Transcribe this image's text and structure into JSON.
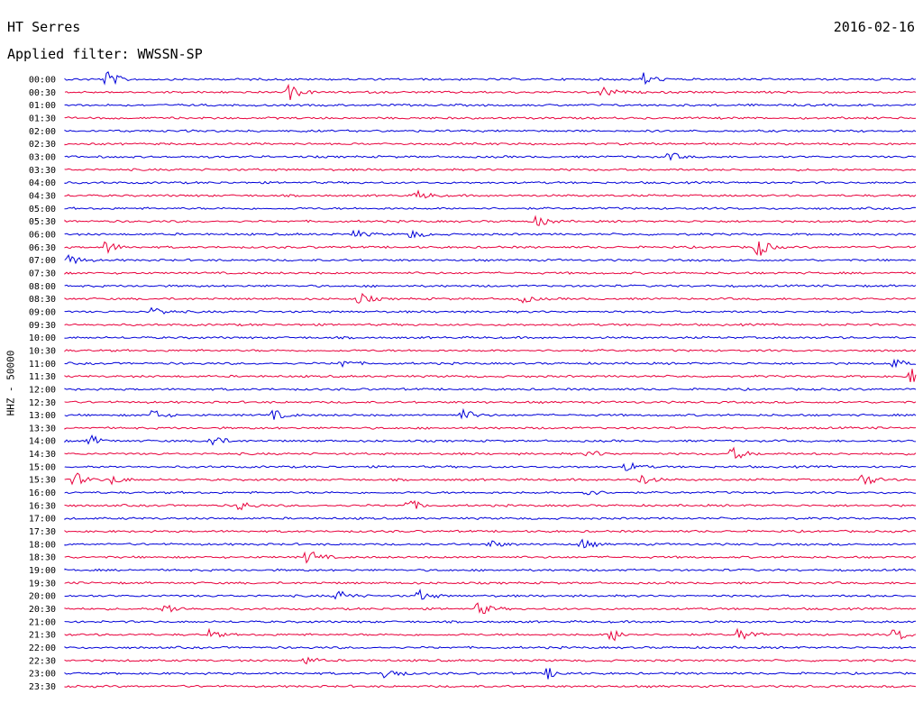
{
  "header": {
    "station": "HT Serres",
    "date": "2016-02-16",
    "filter_label": "Applied filter: WWSSN-SP"
  },
  "axis_label": "HHZ - 50000",
  "colors": {
    "blue": "#0000d8",
    "red": "#e8003c"
  },
  "time_labels": [
    "00:00",
    "00:30",
    "01:00",
    "01:30",
    "02:00",
    "02:30",
    "03:00",
    "03:30",
    "04:00",
    "04:30",
    "05:00",
    "05:30",
    "06:00",
    "06:30",
    "07:00",
    "07:30",
    "08:00",
    "08:30",
    "09:00",
    "09:30",
    "10:00",
    "10:30",
    "11:00",
    "11:30",
    "12:00",
    "12:30",
    "13:00",
    "13:30",
    "14:00",
    "14:30",
    "15:00",
    "15:30",
    "16:00",
    "16:30",
    "17:00",
    "17:30",
    "18:00",
    "18:30",
    "19:00",
    "19:30",
    "20:00",
    "20:30",
    "21:00",
    "21:30",
    "22:00",
    "22:30",
    "23:00",
    "23:30"
  ]
}
